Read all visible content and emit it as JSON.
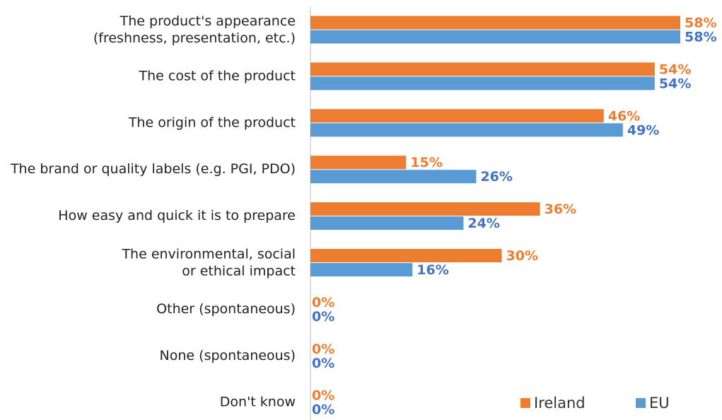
{
  "chart_data": {
    "type": "bar",
    "orientation": "horizontal",
    "categories": [
      "The product's appearance\n(freshness, presentation, etc.)",
      "The cost of the product",
      "The origin of the product",
      "The brand or quality labels (e.g. PGI, PDO)",
      "How easy and quick it is to prepare",
      "The environmental, social\nor ethical impact",
      "Other (spontaneous)",
      "None (spontaneous)",
      "Don't know"
    ],
    "series": [
      {
        "name": "Ireland",
        "color": "#ed7d31",
        "label_color": "#ed7d31",
        "values": [
          58,
          54,
          46,
          15,
          36,
          30,
          0,
          0,
          0
        ],
        "value_labels": [
          "58%",
          "54%",
          "46%",
          "15%",
          "36%",
          "30%",
          "0%",
          "0%",
          "0%"
        ]
      },
      {
        "name": "EU",
        "color": "#5b9bd5",
        "label_color": "#4472c4",
        "values": [
          58,
          54,
          49,
          26,
          24,
          16,
          0,
          0,
          0
        ],
        "value_labels": [
          "58%",
          "54%",
          "49%",
          "26%",
          "24%",
          "16%",
          "0%",
          "0%",
          "0%"
        ]
      }
    ],
    "legend": "lower right"
  }
}
